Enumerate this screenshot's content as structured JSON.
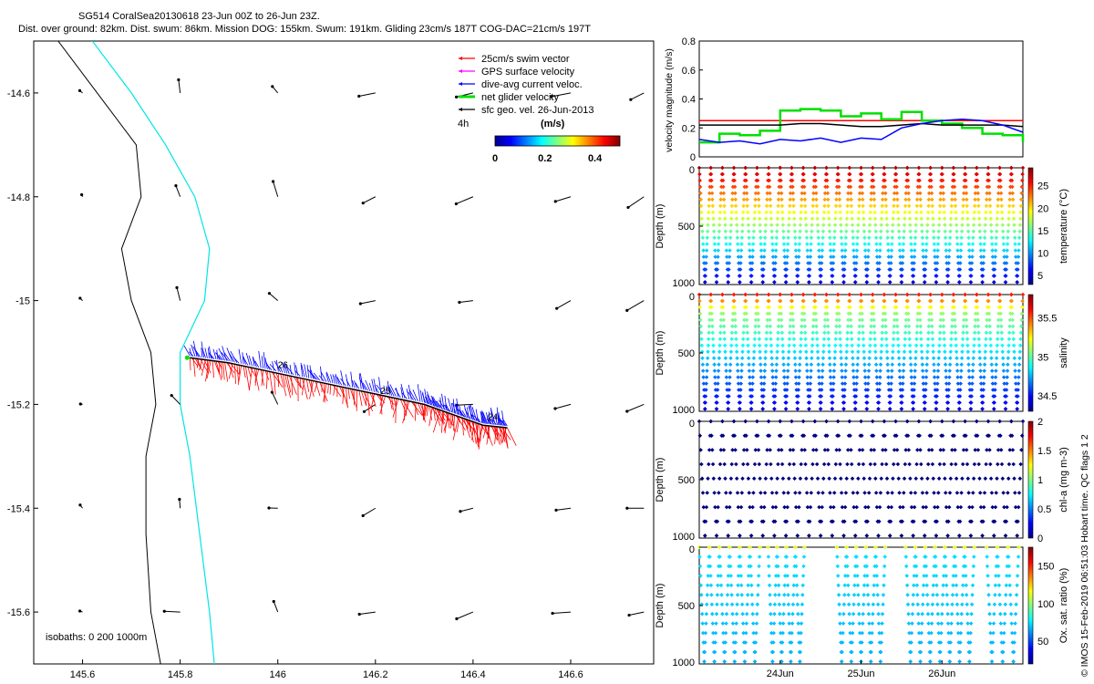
{
  "header": {
    "line1": "SG514 CoralSea20130618 23-Jun 00Z to 26-Jun 23Z.",
    "line2": "Dist. over ground: 82km. Dist. swum: 86km. Mission DOG: 155km. Swum: 191km. Gliding 23cm/s 187T COG-DAC=21cm/s 197T"
  },
  "side_credit": "© IMOS 15-Feb-2019 06:51:03 Hobart time. QC flags 1  2",
  "chart_data": [
    {
      "type": "scatter",
      "panel": "map",
      "xlim": [
        145.5,
        146.77
      ],
      "ylim": [
        -15.7,
        -14.5
      ],
      "x_ticks": [
        145.6,
        145.8,
        146,
        146.2,
        146.4,
        146.6
      ],
      "x_tick_labels": [
        "145.6",
        "145.8",
        "146",
        "146.2",
        "146.4",
        "146.6"
      ],
      "y_ticks": [
        -14.6,
        -14.8,
        -15,
        -15.2,
        -15.4,
        -15.6
      ],
      "y_tick_labels": [
        "-14.6",
        "-14.8",
        "-15",
        "-15.2",
        "-15.4",
        "-15.6"
      ],
      "legend": [
        {
          "label": "25cm/s swim vector",
          "color": "#ff0000"
        },
        {
          "label": "GPS surface velocity",
          "color": "#ff00ff"
        },
        {
          "label": "dive-avg current veloc.",
          "color": "#0000ff"
        },
        {
          "label": "net glider velocity",
          "color": "#00e000"
        },
        {
          "label": "sfc geo. vel. 26-Jun-2013",
          "color": "#000000"
        }
      ],
      "legend_placement": "top-right",
      "scale_label": "4h",
      "colorbar": {
        "label": "(m/s)",
        "ticks": [
          0,
          0.2,
          0.4
        ],
        "tick_labels": [
          "0",
          "0.2",
          "0.4"
        ],
        "range": [
          0,
          0.5
        ]
      },
      "isobath_label": "isobaths: 0   200  1000m",
      "isobaths": {
        "black": {
          "lon": [
            145.55,
            145.63,
            145.71,
            145.72,
            145.68,
            145.7,
            145.74,
            145.75,
            145.73,
            145.73,
            145.74,
            145.76
          ],
          "lat": [
            -14.5,
            -14.6,
            -14.7,
            -14.8,
            -14.9,
            -15.0,
            -15.1,
            -15.2,
            -15.3,
            -15.45,
            -15.6,
            -15.7
          ]
        },
        "cyan": {
          "lon": [
            145.62,
            145.7,
            145.77,
            145.83,
            145.86,
            145.85,
            145.8,
            145.8,
            145.82,
            145.84,
            145.86,
            145.87
          ],
          "lat": [
            -14.5,
            -14.6,
            -14.7,
            -14.8,
            -14.9,
            -15.0,
            -15.1,
            -15.2,
            -15.3,
            -15.45,
            -15.6,
            -15.7
          ]
        }
      },
      "track": {
        "lon": [
          145.82,
          145.9,
          146.0,
          146.1,
          146.2,
          146.3,
          146.36,
          146.42,
          146.47
        ],
        "lat": [
          -15.11,
          -15.12,
          -15.14,
          -15.16,
          -15.18,
          -15.2,
          -15.22,
          -15.24,
          -15.245
        ]
      },
      "day_labels": [
        {
          "text": "26",
          "lon": 146.0,
          "lat": -15.13
        },
        {
          "text": "25",
          "lon": 146.21,
          "lat": -15.18
        },
        {
          "text": "24",
          "lon": 146.43,
          "lat": -15.23
        }
      ],
      "geo_vectors": {
        "lon": [
          145.6,
          145.8,
          146.0,
          146.2,
          146.4,
          146.6,
          146.75
        ],
        "lat": [
          -14.6,
          -14.8,
          -15.0,
          -15.2,
          -15.4,
          -15.6
        ]
      }
    },
    {
      "type": "line",
      "panel": "velocity",
      "ylabel": "velocity magnitude (m/s)",
      "ylim": [
        0,
        0.8
      ],
      "y_ticks": [
        0,
        0.2,
        0.4,
        0.6,
        0.8
      ],
      "y_tick_labels": [
        "0",
        "0.2",
        "0.4",
        "0.6",
        "0.8"
      ],
      "x": [
        23,
        23.25,
        23.5,
        23.75,
        24,
        24.25,
        24.5,
        24.75,
        25,
        25.25,
        25.5,
        25.75,
        26,
        26.25,
        26.5,
        26.75,
        27
      ],
      "series": [
        {
          "color": "#ff0000",
          "values": [
            0.25,
            0.25,
            0.25,
            0.25,
            0.25,
            0.25,
            0.25,
            0.25,
            0.25,
            0.25,
            0.25,
            0.25,
            0.25,
            0.25,
            0.25,
            0.25,
            0.25
          ]
        },
        {
          "color": "#00e000",
          "values": [
            0.1,
            0.16,
            0.15,
            0.18,
            0.32,
            0.33,
            0.32,
            0.28,
            0.3,
            0.26,
            0.31,
            0.25,
            0.23,
            0.2,
            0.16,
            0.15,
            0.1
          ]
        },
        {
          "color": "#000000",
          "values": [
            0.22,
            0.22,
            0.22,
            0.22,
            0.22,
            0.23,
            0.23,
            0.22,
            0.21,
            0.21,
            0.22,
            0.23,
            0.22,
            0.22,
            0.22,
            0.22,
            0.21
          ]
        },
        {
          "color": "#0000ff",
          "values": [
            0.12,
            0.1,
            0.11,
            0.09,
            0.12,
            0.11,
            0.13,
            0.1,
            0.13,
            0.12,
            0.2,
            0.23,
            0.25,
            0.26,
            0.25,
            0.22,
            0.17
          ]
        }
      ]
    },
    {
      "type": "scatter",
      "panel": "temperature",
      "ylabel": "Depth (m)",
      "ylim": [
        1000,
        0
      ],
      "y_ticks": [
        0,
        500,
        1000
      ],
      "y_tick_labels": [
        "0",
        "500",
        "1000"
      ],
      "colorbar": {
        "label": "temperature (°C)",
        "range": [
          3,
          29
        ],
        "ticks": [
          5,
          10,
          15,
          20,
          25
        ],
        "tick_labels": [
          "5",
          "10",
          "15",
          "20",
          "25"
        ]
      },
      "dives": 28,
      "max_depth": 980,
      "surface_value": 28,
      "deep_value": 4
    },
    {
      "type": "scatter",
      "panel": "salinity",
      "ylabel": "Depth (m)",
      "ylim": [
        1000,
        0
      ],
      "y_ticks": [
        0,
        500,
        1000
      ],
      "y_tick_labels": [
        "0",
        "500",
        "1000"
      ],
      "colorbar": {
        "label": "salinity",
        "range": [
          34.3,
          35.8
        ],
        "ticks": [
          34.5,
          35,
          35.5
        ],
        "tick_labels": [
          "34.5",
          "35",
          "35.5"
        ]
      },
      "dives": 28,
      "max_depth": 980
    },
    {
      "type": "scatter",
      "panel": "chlorophyll",
      "ylabel": "Depth (m)",
      "ylim": [
        1000,
        0
      ],
      "y_ticks": [
        0,
        500,
        1000
      ],
      "y_tick_labels": [
        "0",
        "500",
        "1000"
      ],
      "colorbar": {
        "label": "chl-a (mg m-3)",
        "range": [
          0,
          2
        ],
        "ticks": [
          0,
          0.5,
          1,
          1.5,
          2
        ],
        "tick_labels": [
          "0",
          "0.5",
          "1",
          "1.5",
          "2"
        ]
      },
      "dives": 28,
      "max_depth": 980
    },
    {
      "type": "scatter",
      "panel": "oxygen",
      "ylabel": "Depth (m)",
      "ylim": [
        1000,
        0
      ],
      "y_ticks": [
        0,
        500,
        1000
      ],
      "y_tick_labels": [
        "0",
        "500",
        "1000"
      ],
      "colorbar": {
        "label": "Ox. sat. ratio (%)",
        "range": [
          20,
          175
        ],
        "ticks": [
          50,
          100,
          150
        ],
        "tick_labels": [
          "50",
          "100",
          "150"
        ]
      },
      "x_ticks": [
        24,
        25,
        26
      ],
      "x_tick_labels": [
        "24Jun",
        "25Jun",
        "26Jun"
      ],
      "dive_sections": [
        [
          23.0,
          23.75
        ],
        [
          23.85,
          24.3
        ],
        [
          24.7,
          25.3
        ],
        [
          25.55,
          26.4
        ],
        [
          26.55,
          26.95
        ]
      ],
      "max_depth": 980
    }
  ]
}
